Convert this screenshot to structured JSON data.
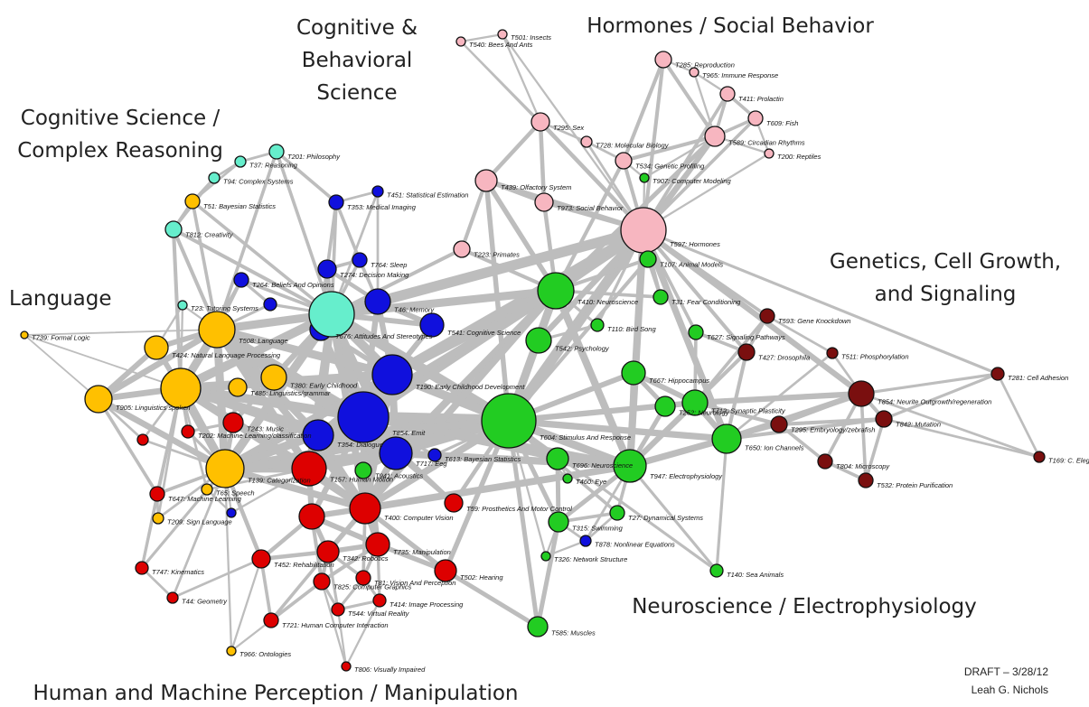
{
  "clusters": [
    {
      "lines": [
        "Cognitive &",
        "Behavioral",
        "Science"
      ]
    },
    {
      "lines": [
        "Hormones / Social Behavior"
      ]
    },
    {
      "lines": [
        "Cognitive Science /",
        "Complex Reasoning"
      ]
    },
    {
      "lines": [
        "Genetics, Cell Growth,",
        "and Signaling"
      ]
    },
    {
      "lines": [
        "Language"
      ]
    },
    {
      "lines": [
        "Neuroscience / Electrophysiology"
      ]
    },
    {
      "lines": [
        "Human and Machine Perception / Manipulation"
      ]
    }
  ],
  "nodes": [
    {
      "label": "T501: Insects"
    },
    {
      "label": "T540: Bees And Ants"
    },
    {
      "label": "T285: Reproduction"
    },
    {
      "label": "T965: Immune Response"
    },
    {
      "label": "T411: Prolactin"
    },
    {
      "label": "T609: Fish"
    },
    {
      "label": "T589: Circadian Rhythms"
    },
    {
      "label": "T200: Reptiles"
    },
    {
      "label": "T295: Sex"
    },
    {
      "label": "T728: Molecular Biology"
    },
    {
      "label": "T439: Olfactory System"
    },
    {
      "label": "T973: Social Behavior"
    },
    {
      "label": "T223: Primates"
    },
    {
      "label": "T597: Hormones"
    },
    {
      "label": "T534: Genetic Profiling"
    },
    {
      "label": "T907: Computer Modeling"
    },
    {
      "label": "T107: Animal Models"
    },
    {
      "label": "T31: Fear Conditioning"
    },
    {
      "label": "T410: Neuroscience"
    },
    {
      "label": "T110: Bird Song"
    },
    {
      "label": "T542: Psychology"
    },
    {
      "label": "T667: Hippocampus"
    },
    {
      "label": "T627: Signaling Pathways"
    },
    {
      "label": "T252: Neurology"
    },
    {
      "label": "T712: Synaptic Plasticity"
    },
    {
      "label": "T650: Ion Channels"
    },
    {
      "label": "T604: Stimulus And Response"
    },
    {
      "label": "T696: Neuroscience"
    },
    {
      "label": "T460: Eye"
    },
    {
      "label": "T947: Electrophysiology"
    },
    {
      "label": "T27: Dynamical Systems"
    },
    {
      "label": "T315: Swimming"
    },
    {
      "label": "T326: Network Structure"
    },
    {
      "label": "T585: Muscles"
    },
    {
      "label": "T140: Sea Animals"
    },
    {
      "label": "T941: Acoustics"
    },
    {
      "label": "T451: Statistical Estimation"
    },
    {
      "label": "T353: Medical Imaging"
    },
    {
      "label": "T764: Sleep"
    },
    {
      "label": "T274: Decision Making"
    },
    {
      "label": "T264: Beliefs And Opinions"
    },
    {
      "label": "T46: Memory"
    },
    {
      "label": "T541: Cognitive Science"
    },
    {
      "label": "T676: Attitudes And Stereotypes"
    },
    {
      "label": "T190: Early Childhood Development"
    },
    {
      "label": "T854: Emit"
    },
    {
      "label": "T354: Dialogue"
    },
    {
      "label": "T717: Eeg"
    },
    {
      "label": "T613: Bayesian Statistics"
    },
    {
      "label": "T878: Nonlinear Equations"
    },
    {
      "label": "T201: Philosophy"
    },
    {
      "label": "T37: Reasoning"
    },
    {
      "label": "T94: Complex Systems"
    },
    {
      "label": "T812: Creativity"
    },
    {
      "label": "T23: Tutoring Systems"
    },
    {
      "label": "T739: Formal Logic"
    },
    {
      "label": "T51: Bayesian Statistics"
    },
    {
      "label": "T508: Language"
    },
    {
      "label": "T424: Natural Language Processing"
    },
    {
      "label": "T380: Early Childhood"
    },
    {
      "label": "T485: Linguistics/grammar"
    },
    {
      "label": "T905: Linguistics spoken"
    },
    {
      "label": "T139: Categorization"
    },
    {
      "label": "T65: Speech"
    },
    {
      "label": "T209: Sign Language"
    },
    {
      "label": "T966: Ontologies"
    },
    {
      "label": "T243: Music"
    },
    {
      "label": "T202: Machine Learning/classification"
    },
    {
      "label": "T647: Machine Learning"
    },
    {
      "label": "T157: Human Motion"
    },
    {
      "label": "T400: Computer Vision"
    },
    {
      "label": "T59: Prosthetics And Motor Control"
    },
    {
      "label": "T735: Manipulation"
    },
    {
      "label": "T342: Robotics"
    },
    {
      "label": "T452: Rehabilitation"
    },
    {
      "label": "T825: Computer Graphics"
    },
    {
      "label": "T81: Vision And Perception"
    },
    {
      "label": "T414: Image Processing"
    },
    {
      "label": "T544: Virtual Reality"
    },
    {
      "label": "T721: Human Computer Interaction"
    },
    {
      "label": "T747: Kinematics"
    },
    {
      "label": "T44: Geometry"
    },
    {
      "label": "T502: Hearing"
    },
    {
      "label": "T806: Visually Impaired"
    },
    {
      "label": "T593: Gene Knockdown"
    },
    {
      "label": "T427: Drosophila"
    },
    {
      "label": "T511: Phosphorylation"
    },
    {
      "label": "T281: Cell Adhesion"
    },
    {
      "label": "T854: Neurite Outgrowth/regeneration"
    },
    {
      "label": "T842: Mutation"
    },
    {
      "label": "T295: Embryology/zebrafish"
    },
    {
      "label": "T804: Microscopy"
    },
    {
      "label": "T532: Protein Purification"
    },
    {
      "label": "T169: C. Elegans"
    }
  ],
  "footer": {
    "draft": "DRAFT – 3/28/12",
    "author": "Leah G. Nichols"
  }
}
